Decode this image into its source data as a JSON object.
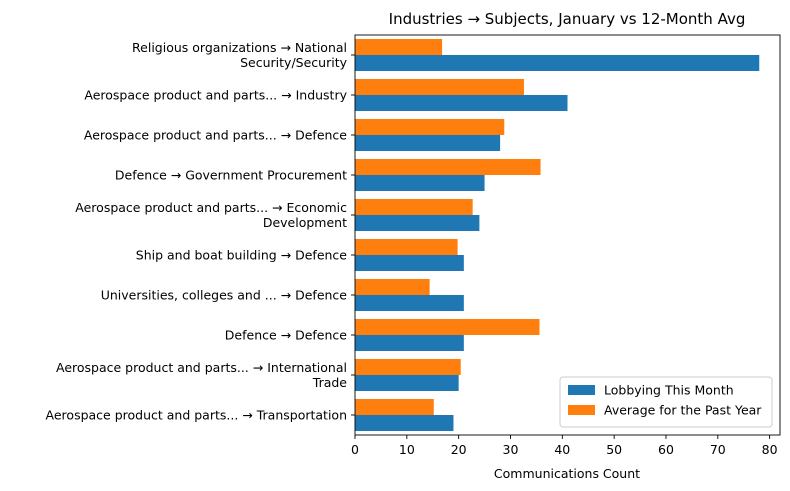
{
  "chart_data": {
    "type": "bar",
    "orientation": "horizontal",
    "title": "Industries → Subjects, January vs 12-Month Avg",
    "xlabel": "Communications Count",
    "ylabel": "",
    "xlim": [
      0,
      82
    ],
    "xticks": [
      0,
      10,
      20,
      30,
      40,
      50,
      60,
      70,
      80
    ],
    "categories": [
      [
        "Religious organizations → National",
        "Security/Security"
      ],
      [
        "Aerospace product and parts... → Industry"
      ],
      [
        "Aerospace product and parts... → Defence"
      ],
      [
        "Defence → Government Procurement"
      ],
      [
        "Aerospace product and parts... → Economic",
        "Development"
      ],
      [
        "Ship and boat building → Defence"
      ],
      [
        "Universities, colleges and ... → Defence"
      ],
      [
        "Defence → Defence"
      ],
      [
        "Aerospace product and parts... → International",
        "Trade"
      ],
      [
        "Aerospace product and parts... → Transportation"
      ]
    ],
    "series": [
      {
        "name": "Lobbying This Month",
        "color": "#1f77b4",
        "values": [
          78,
          41,
          28,
          25,
          24,
          21,
          21,
          21,
          20,
          19
        ]
      },
      {
        "name": "Average for the Past Year",
        "color": "#ff7f0e",
        "values": [
          16.8,
          32.6,
          28.8,
          35.8,
          22.7,
          19.8,
          14.4,
          35.6,
          20.4,
          15.2
        ]
      }
    ],
    "legend": "lower right",
    "grid": false
  }
}
